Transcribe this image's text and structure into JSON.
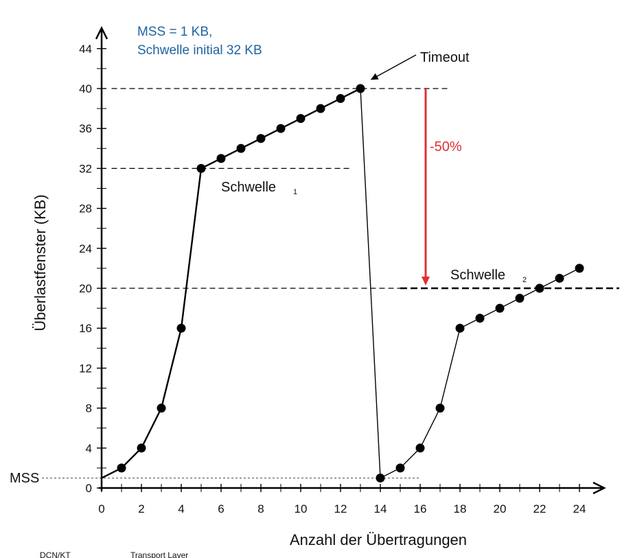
{
  "chart_data": {
    "type": "line",
    "title": "",
    "xlabel": "Anzahl der Übertragungen",
    "ylabel": "Überlastfenster (KB)",
    "xlim": [
      0,
      24
    ],
    "ylim": [
      0,
      44
    ],
    "x_ticks": [
      0,
      2,
      4,
      6,
      8,
      10,
      12,
      14,
      16,
      18,
      20,
      22,
      24
    ],
    "y_ticks": [
      0,
      4,
      8,
      12,
      16,
      20,
      24,
      28,
      32,
      36,
      40,
      44
    ],
    "series": [
      {
        "x": [
          0,
          1,
          2,
          3,
          4,
          5,
          6,
          7,
          8,
          9,
          10,
          11,
          12,
          13,
          14,
          15,
          16,
          17,
          18,
          19,
          20,
          21,
          22,
          23,
          24
        ],
        "y": [
          1,
          2,
          4,
          8,
          16,
          32,
          33,
          34,
          35,
          36,
          37,
          38,
          39,
          40,
          1,
          2,
          4,
          8,
          16,
          17,
          18,
          19,
          20,
          21,
          22
        ]
      }
    ],
    "reference_lines": [
      {
        "y": 40,
        "x_from": 0.5,
        "x_to": 17.5,
        "style": "dashed"
      },
      {
        "y": 32,
        "x_from": 0.5,
        "x_to": 12.6,
        "style": "dashed"
      },
      {
        "y": 20,
        "x_from": 0.5,
        "x_to": 15.0,
        "style": "dashed"
      },
      {
        "y": 20,
        "x_from": 15.0,
        "x_to": 26.0,
        "style": "dashed-bold"
      },
      {
        "y": 1,
        "x_from": -3.0,
        "x_to": 16.0,
        "style": "dotted"
      }
    ],
    "annotations": {
      "note_line1": "MSS = 1 KB,",
      "note_line2": "Schwelle initial 32 KB",
      "timeout": "Timeout",
      "threshold1": "Schwelle",
      "threshold1_sub": "1",
      "threshold2": "Schwelle",
      "threshold2_sub": "2",
      "drop": "-50%",
      "mss": "MSS"
    },
    "colors": {
      "series": "#000000",
      "note": "#1f63a0",
      "drop_arrow": "#e03030"
    },
    "grid": false
  },
  "footer": {
    "left": "DCN/KT",
    "right": "Transport Layer"
  }
}
